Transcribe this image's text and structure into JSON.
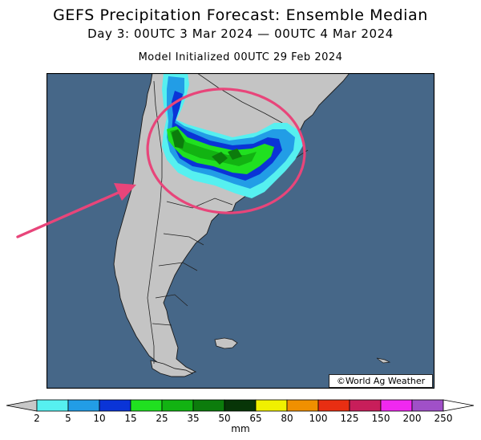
{
  "header": {
    "title": "GEFS Precipitation Forecast: Ensemble Median",
    "subtitle": "Day 3: 00UTC 3 Mar 2024 — 00UTC 4 Mar 2024",
    "init": "Model Initialized 00UTC 29 Feb 2024"
  },
  "map": {
    "credit": "©World Ag Weather",
    "ocean_color": "#466788",
    "land_color": "#c4c4c4",
    "highlight_color": "#e8457a",
    "annotations": [
      "highlight-ellipse",
      "pointer-arrow"
    ]
  },
  "colorbar": {
    "unit": "mm",
    "ticks": [
      "2",
      "5",
      "10",
      "15",
      "25",
      "35",
      "50",
      "65",
      "80",
      "100",
      "125",
      "150",
      "200",
      "250"
    ],
    "colors": [
      "#56f0f0",
      "#229de6",
      "#0a34d7",
      "#20e020",
      "#12b312",
      "#0c7c0c",
      "#073507",
      "#f0f000",
      "#f09000",
      "#e82e12",
      "#c81e5a",
      "#f028f0",
      "#a050c8"
    ],
    "end_colors": [
      "#c8c8c8",
      "#ffffff"
    ]
  }
}
